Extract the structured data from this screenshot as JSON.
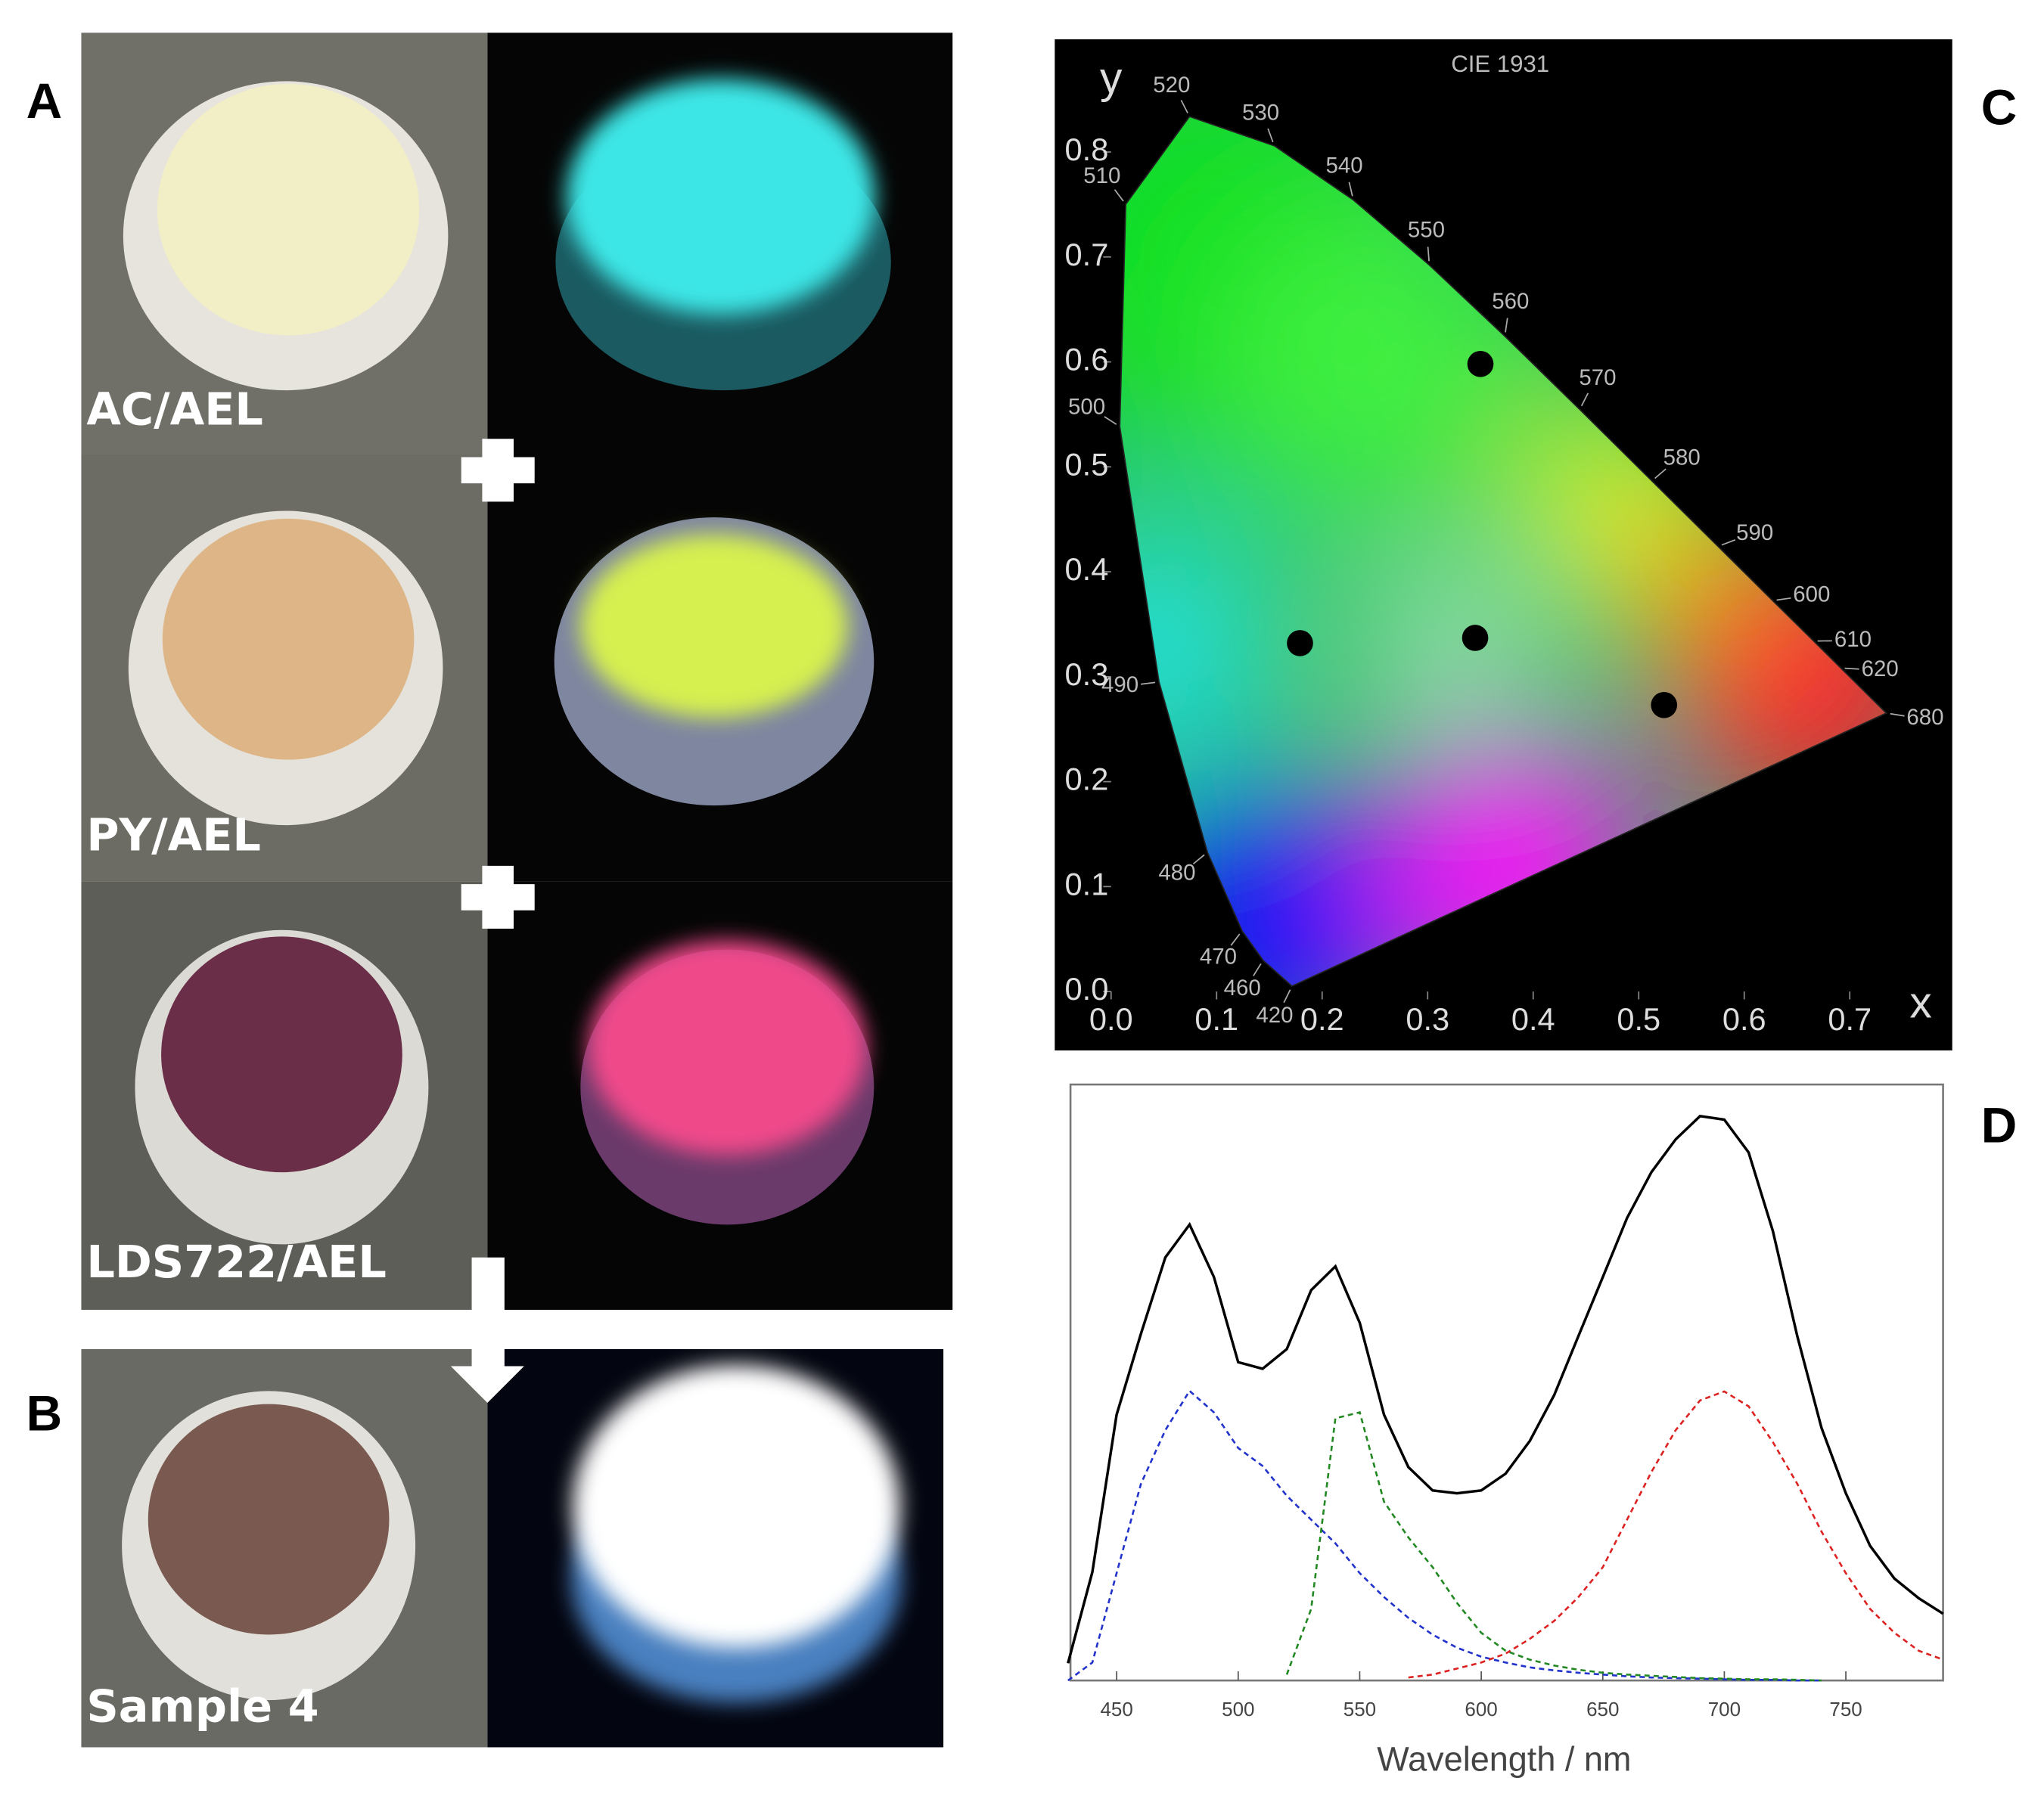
{
  "figure": {
    "panel_labels": [
      "A",
      "B",
      "C",
      "D"
    ],
    "photo_labels": [
      "AC/AEL",
      "PY/AEL",
      "LDS722/AEL",
      "Sample 4"
    ]
  },
  "chart_data": [
    {
      "type": "cie",
      "title": "CIE 1931",
      "xlabel": "x",
      "ylabel": "y",
      "xlim": [
        0,
        0.74
      ],
      "ylim": [
        0,
        0.85
      ],
      "xticks": [
        {
          "value": 0,
          "label": "0.0"
        },
        {
          "value": 0.1,
          "label": "0.1"
        },
        {
          "value": 0.2,
          "label": "0.2"
        },
        {
          "value": 0.3,
          "label": "0.3"
        },
        {
          "value": 0.4,
          "label": "0.4"
        },
        {
          "value": 0.5,
          "label": "0.5"
        },
        {
          "value": 0.6,
          "label": "0.6"
        },
        {
          "value": 0.7,
          "label": "0.7"
        }
      ],
      "yticks": [
        {
          "value": 0,
          "label": "0.0"
        },
        {
          "value": 0.1,
          "label": "0.1"
        },
        {
          "value": 0.2,
          "label": "0.2"
        },
        {
          "value": 0.3,
          "label": "0.3"
        },
        {
          "value": 0.4,
          "label": "0.4"
        },
        {
          "value": 0.5,
          "label": "0.5"
        },
        {
          "value": 0.6,
          "label": "0.6"
        },
        {
          "value": 0.7,
          "label": "0.7"
        },
        {
          "value": 0.8,
          "label": "0.8"
        }
      ],
      "locus": {
        "wavelengths": [
          420,
          460,
          470,
          480,
          490,
          500,
          510,
          520,
          530,
          540,
          550,
          560,
          570,
          580,
          590,
          600,
          610,
          620,
          680
        ],
        "x": [
          0.1714,
          0.144,
          0.1241,
          0.0913,
          0.0454,
          0.0082,
          0.0139,
          0.0743,
          0.1547,
          0.2296,
          0.3016,
          0.3731,
          0.4441,
          0.5125,
          0.5752,
          0.627,
          0.6658,
          0.6915,
          0.7347
        ],
        "y": [
          0.0051,
          0.0297,
          0.0578,
          0.1327,
          0.295,
          0.5384,
          0.7502,
          0.8338,
          0.8059,
          0.7543,
          0.6923,
          0.6245,
          0.5547,
          0.4866,
          0.4242,
          0.3725,
          0.334,
          0.3083,
          0.2653
        ]
      },
      "points": {
        "color": "#000000",
        "x": [
          0.179,
          0.35,
          0.345,
          0.524
        ],
        "y": [
          0.332,
          0.598,
          0.337,
          0.273
        ]
      }
    },
    {
      "type": "line",
      "xlabel": "Wavelength / nm",
      "xlim": [
        431,
        790
      ],
      "ylim": [
        0,
        1
      ],
      "xticks": [
        450,
        500,
        550,
        600,
        650,
        700,
        750
      ],
      "x": [
        430,
        440,
        450,
        460,
        470,
        480,
        490,
        500,
        510,
        520,
        530,
        540,
        550,
        560,
        570,
        580,
        590,
        600,
        610,
        620,
        630,
        640,
        650,
        660,
        670,
        680,
        690,
        700,
        710,
        720,
        730,
        740,
        750,
        760,
        770,
        780,
        790
      ],
      "series": [
        {
          "color": "#000000",
          "dashed": false,
          "values": [
            0.029,
            0.182,
            0.446,
            0.582,
            0.71,
            0.765,
            0.677,
            0.534,
            0.523,
            0.556,
            0.655,
            0.695,
            0.6,
            0.446,
            0.358,
            0.319,
            0.314,
            0.319,
            0.347,
            0.402,
            0.479,
            0.578,
            0.677,
            0.776,
            0.853,
            0.908,
            0.947,
            0.941,
            0.886,
            0.754,
            0.578,
            0.424,
            0.314,
            0.226,
            0.171,
            0.138,
            0.112
          ]
        },
        {
          "color": "#2233cc",
          "dashed": true,
          "values": [
            0,
            0.03,
            0.18,
            0.33,
            0.42,
            0.486,
            0.45,
            0.39,
            0.36,
            0.31,
            0.27,
            0.23,
            0.18,
            0.14,
            0.105,
            0.077,
            0.055,
            0.04,
            0.03,
            0.022,
            0.017,
            0.013,
            0.01,
            0.007,
            0.005,
            0.004,
            0.003,
            0.002,
            0.001,
            0.001,
            0,
            0,
            null,
            null,
            null,
            null,
            null
          ]
        },
        {
          "color": "#228822",
          "dashed": true,
          "values": [
            null,
            null,
            null,
            null,
            null,
            null,
            null,
            null,
            null,
            0.01,
            0.12,
            0.44,
            0.45,
            0.3,
            0.24,
            0.19,
            0.13,
            0.08,
            0.05,
            0.035,
            0.025,
            0.018,
            0.013,
            0.01,
            0.008,
            0.006,
            0.004,
            0.003,
            0.002,
            0.002,
            0.001,
            0,
            null,
            null,
            null,
            null,
            null
          ]
        },
        {
          "color": "#dd2222",
          "dashed": true,
          "values": [
            null,
            null,
            null,
            null,
            null,
            null,
            null,
            null,
            null,
            null,
            null,
            null,
            null,
            null,
            0.005,
            0.01,
            0.02,
            0.03,
            0.045,
            0.07,
            0.1,
            0.14,
            0.19,
            0.27,
            0.35,
            0.42,
            0.47,
            0.485,
            0.46,
            0.4,
            0.33,
            0.25,
            0.18,
            0.12,
            0.08,
            0.05,
            0.035
          ]
        }
      ]
    }
  ]
}
